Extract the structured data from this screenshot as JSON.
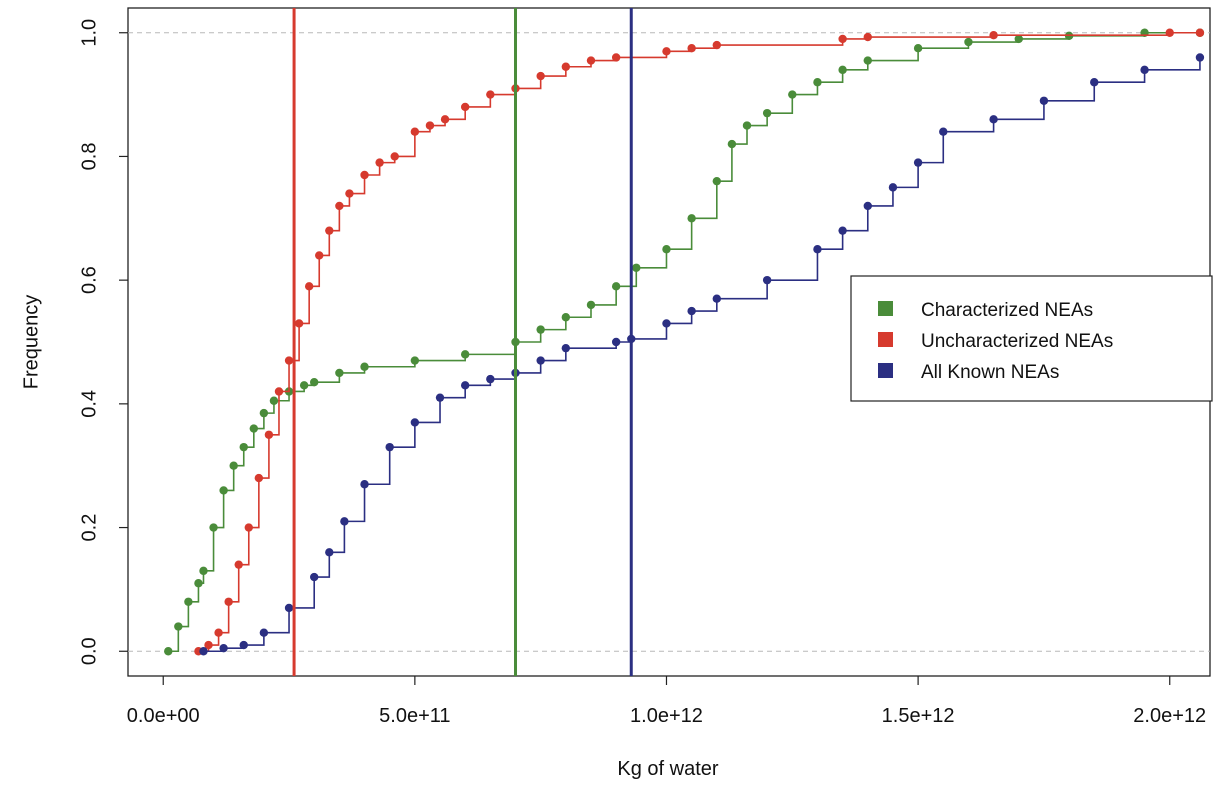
{
  "chart_data": {
    "type": "line",
    "title": "",
    "xlabel": "Kg of water",
    "ylabel": "Frequency",
    "xlim": [
      -70000000000,
      2080000000000
    ],
    "ylim": [
      -0.04,
      1.04
    ],
    "x_ticks": [
      0,
      500000000000,
      1000000000000,
      1500000000000,
      2000000000000
    ],
    "x_tick_labels": [
      "0.0e+00",
      "5.0e+11",
      "1.0e+12",
      "1.5e+12",
      "2.0e+12"
    ],
    "y_ticks": [
      0,
      0.2,
      0.4,
      0.6,
      0.8,
      1.0
    ],
    "y_tick_labels": [
      "0.0",
      "0.2",
      "0.4",
      "0.6",
      "0.8",
      "1.0"
    ],
    "reference_hlines": [
      0,
      1
    ],
    "legend_position": "right",
    "series": [
      {
        "name": "Characterized NEAs",
        "color": "#4a8c3a",
        "x": [
          10000000000.0,
          30000000000.0,
          50000000000.0,
          70000000000.0,
          80000000000.0,
          100000000000.0,
          120000000000.0,
          140000000000.0,
          160000000000.0,
          180000000000.0,
          200000000000.0,
          220000000000.0,
          250000000000.0,
          280000000000.0,
          300000000000.0,
          350000000000.0,
          400000000000.0,
          500000000000.0,
          600000000000.0,
          700000000000.0,
          750000000000.0,
          800000000000.0,
          850000000000.0,
          900000000000.0,
          940000000000.0,
          1000000000000.0,
          1050000000000.0,
          1100000000000.0,
          1130000000000.0,
          1160000000000.0,
          1200000000000.0,
          1250000000000.0,
          1300000000000.0,
          1350000000000.0,
          1400000000000.0,
          1500000000000.0,
          1600000000000.0,
          1700000000000.0,
          1800000000000.0,
          1950000000000.0,
          2060000000000.0
        ],
        "y": [
          0.0,
          0.04,
          0.08,
          0.11,
          0.13,
          0.2,
          0.26,
          0.3,
          0.33,
          0.36,
          0.385,
          0.405,
          0.42,
          0.43,
          0.435,
          0.45,
          0.46,
          0.47,
          0.48,
          0.5,
          0.52,
          0.54,
          0.56,
          0.59,
          0.62,
          0.65,
          0.7,
          0.76,
          0.82,
          0.85,
          0.87,
          0.9,
          0.92,
          0.94,
          0.955,
          0.975,
          0.985,
          0.99,
          0.995,
          1.0,
          1.0
        ]
      },
      {
        "name": "Uncharacterized NEAs",
        "color": "#d63a2e",
        "x": [
          70000000000.0,
          90000000000.0,
          110000000000.0,
          130000000000.0,
          150000000000.0,
          170000000000.0,
          190000000000.0,
          210000000000.0,
          230000000000.0,
          250000000000.0,
          270000000000.0,
          290000000000.0,
          310000000000.0,
          330000000000.0,
          350000000000.0,
          370000000000.0,
          400000000000.0,
          430000000000.0,
          460000000000.0,
          500000000000.0,
          530000000000.0,
          560000000000.0,
          600000000000.0,
          650000000000.0,
          700000000000.0,
          750000000000.0,
          800000000000.0,
          850000000000.0,
          900000000000.0,
          1000000000000.0,
          1050000000000.0,
          1100000000000.0,
          1350000000000.0,
          1400000000000.0,
          1650000000000.0,
          2000000000000.0,
          2060000000000.0
        ],
        "y": [
          0.0,
          0.01,
          0.03,
          0.08,
          0.14,
          0.2,
          0.28,
          0.35,
          0.42,
          0.47,
          0.53,
          0.59,
          0.64,
          0.68,
          0.72,
          0.74,
          0.77,
          0.79,
          0.8,
          0.84,
          0.85,
          0.86,
          0.88,
          0.9,
          0.91,
          0.93,
          0.945,
          0.955,
          0.96,
          0.97,
          0.975,
          0.98,
          0.99,
          0.993,
          0.996,
          1.0,
          1.0
        ]
      },
      {
        "name": "All Known NEAs",
        "color": "#2b2f82",
        "x": [
          80000000000.0,
          120000000000.0,
          160000000000.0,
          200000000000.0,
          250000000000.0,
          300000000000.0,
          330000000000.0,
          360000000000.0,
          400000000000.0,
          450000000000.0,
          500000000000.0,
          550000000000.0,
          600000000000.0,
          650000000000.0,
          700000000000.0,
          750000000000.0,
          800000000000.0,
          900000000000.0,
          930000000000.0,
          1000000000000.0,
          1050000000000.0,
          1100000000000.0,
          1200000000000.0,
          1300000000000.0,
          1350000000000.0,
          1400000000000.0,
          1450000000000.0,
          1500000000000.0,
          1550000000000.0,
          1650000000000.0,
          1750000000000.0,
          1850000000000.0,
          1950000000000.0,
          2060000000000.0
        ],
        "y": [
          0.0,
          0.005,
          0.01,
          0.03,
          0.07,
          0.12,
          0.16,
          0.21,
          0.27,
          0.33,
          0.37,
          0.41,
          0.43,
          0.44,
          0.45,
          0.47,
          0.49,
          0.5,
          0.505,
          0.53,
          0.55,
          0.57,
          0.6,
          0.65,
          0.68,
          0.72,
          0.75,
          0.79,
          0.84,
          0.86,
          0.89,
          0.92,
          0.94,
          0.96
        ]
      }
    ],
    "vlines": [
      {
        "x": 260000000000.0,
        "color": "#d63a2e"
      },
      {
        "x": 700000000000.0,
        "color": "#4a8c3a"
      },
      {
        "x": 930000000000.0,
        "color": "#2b2f82"
      }
    ]
  }
}
